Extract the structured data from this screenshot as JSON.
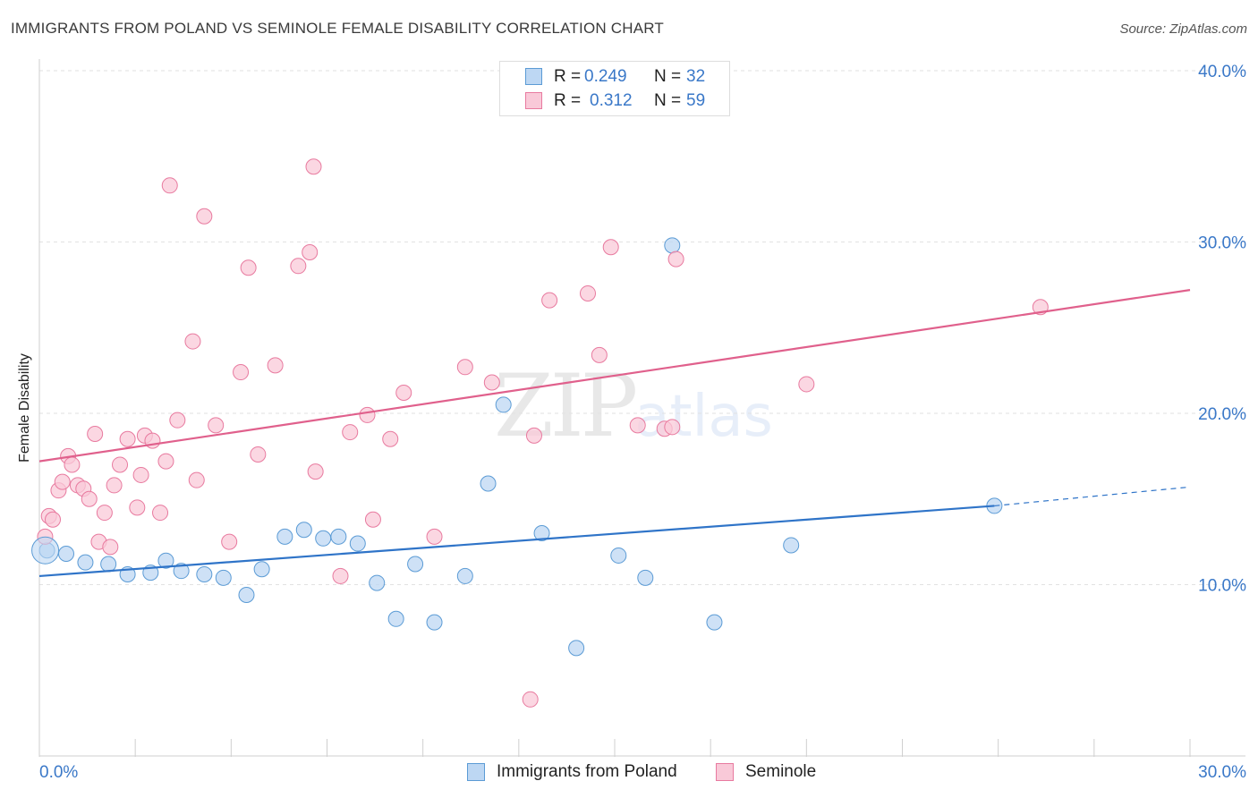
{
  "chart_data": {
    "type": "scatter",
    "title": "IMMIGRANTS FROM POLAND VS SEMINOLE FEMALE DISABILITY CORRELATION CHART",
    "source": "Source: ZipAtlas.com",
    "xlabel": "",
    "ylabel": "Female Disability",
    "xlim": [
      0,
      30
    ],
    "ylim": [
      0,
      40
    ],
    "x_tick_labels": [
      "0.0%",
      "30.0%"
    ],
    "y_ticks": [
      10,
      20,
      30,
      40
    ],
    "y_tick_labels": [
      "10.0%",
      "20.0%",
      "30.0%",
      "40.0%"
    ],
    "grid": true,
    "watermark": {
      "zip": "ZIP",
      "atlas": "atlas"
    },
    "stats": [
      {
        "series": "Immigrants from Poland",
        "r_label": "R =",
        "r": "0.249",
        "n_label": "N =",
        "n": "32"
      },
      {
        "series": "Seminole",
        "r_label": "R =",
        "r": "0.312",
        "n_label": "N =",
        "n": "59"
      }
    ],
    "series": [
      {
        "name": "Immigrants from Poland",
        "color": "#5b9bd5",
        "fill": "#bdd7f3",
        "line_color": "#2f74c8",
        "trend": {
          "x0": 0,
          "y0": 10.5,
          "x1": 24.9,
          "y1": 14.6,
          "dash_x1": 30,
          "dash_y1": 15.7
        },
        "points": [
          [
            0.2,
            12.0
          ],
          [
            0.7,
            11.8
          ],
          [
            1.2,
            11.3
          ],
          [
            1.8,
            11.2
          ],
          [
            2.3,
            10.6
          ],
          [
            2.9,
            10.7
          ],
          [
            3.3,
            11.4
          ],
          [
            3.7,
            10.8
          ],
          [
            4.3,
            10.6
          ],
          [
            4.8,
            10.4
          ],
          [
            5.4,
            9.4
          ],
          [
            5.8,
            10.9
          ],
          [
            6.4,
            12.8
          ],
          [
            6.9,
            13.2
          ],
          [
            7.4,
            12.7
          ],
          [
            7.8,
            12.8
          ],
          [
            8.3,
            12.4
          ],
          [
            8.8,
            10.1
          ],
          [
            9.3,
            8.0
          ],
          [
            9.8,
            11.2
          ],
          [
            10.3,
            7.8
          ],
          [
            11.1,
            10.5
          ],
          [
            11.7,
            15.9
          ],
          [
            12.1,
            20.5
          ],
          [
            13.1,
            13.0
          ],
          [
            14.0,
            6.3
          ],
          [
            15.1,
            11.7
          ],
          [
            15.8,
            10.4
          ],
          [
            16.5,
            29.8
          ],
          [
            17.6,
            7.8
          ],
          [
            19.6,
            12.3
          ],
          [
            24.9,
            14.6
          ]
        ]
      },
      {
        "name": "Seminole",
        "color": "#e87a9f",
        "fill": "#f9c9d8",
        "line_color": "#e0608c",
        "trend": {
          "x0": 0,
          "y0": 17.2,
          "x1": 30,
          "y1": 27.2
        },
        "points": [
          [
            0.15,
            12.8
          ],
          [
            0.25,
            14.0
          ],
          [
            0.35,
            13.8
          ],
          [
            0.5,
            15.5
          ],
          [
            0.6,
            16.0
          ],
          [
            0.75,
            17.5
          ],
          [
            0.85,
            17.0
          ],
          [
            1.0,
            15.8
          ],
          [
            1.15,
            15.6
          ],
          [
            1.3,
            15.0
          ],
          [
            1.45,
            18.8
          ],
          [
            1.55,
            12.5
          ],
          [
            1.7,
            14.2
          ],
          [
            1.85,
            12.2
          ],
          [
            1.95,
            15.8
          ],
          [
            2.1,
            17.0
          ],
          [
            2.3,
            18.5
          ],
          [
            2.55,
            14.5
          ],
          [
            2.65,
            16.4
          ],
          [
            2.75,
            18.7
          ],
          [
            2.95,
            18.4
          ],
          [
            3.15,
            14.2
          ],
          [
            3.3,
            17.2
          ],
          [
            3.4,
            33.3
          ],
          [
            3.6,
            19.6
          ],
          [
            4.0,
            24.2
          ],
          [
            4.1,
            16.1
          ],
          [
            4.3,
            31.5
          ],
          [
            4.6,
            19.3
          ],
          [
            4.95,
            12.5
          ],
          [
            5.25,
            22.4
          ],
          [
            5.45,
            28.5
          ],
          [
            5.7,
            17.6
          ],
          [
            6.15,
            22.8
          ],
          [
            6.75,
            28.6
          ],
          [
            7.05,
            29.4
          ],
          [
            7.15,
            34.4
          ],
          [
            7.2,
            16.6
          ],
          [
            7.85,
            10.5
          ],
          [
            8.1,
            18.9
          ],
          [
            8.55,
            19.9
          ],
          [
            8.7,
            13.8
          ],
          [
            9.15,
            18.5
          ],
          [
            9.5,
            21.2
          ],
          [
            10.3,
            12.8
          ],
          [
            11.1,
            22.7
          ],
          [
            11.8,
            21.8
          ],
          [
            12.8,
            3.3
          ],
          [
            12.9,
            18.7
          ],
          [
            13.3,
            26.6
          ],
          [
            14.3,
            27.0
          ],
          [
            14.6,
            23.4
          ],
          [
            14.9,
            29.7
          ],
          [
            15.6,
            19.3
          ],
          [
            16.3,
            19.1
          ],
          [
            16.5,
            19.2
          ],
          [
            16.6,
            29.0
          ],
          [
            20.0,
            21.7
          ],
          [
            26.1,
            26.2
          ]
        ]
      }
    ]
  }
}
